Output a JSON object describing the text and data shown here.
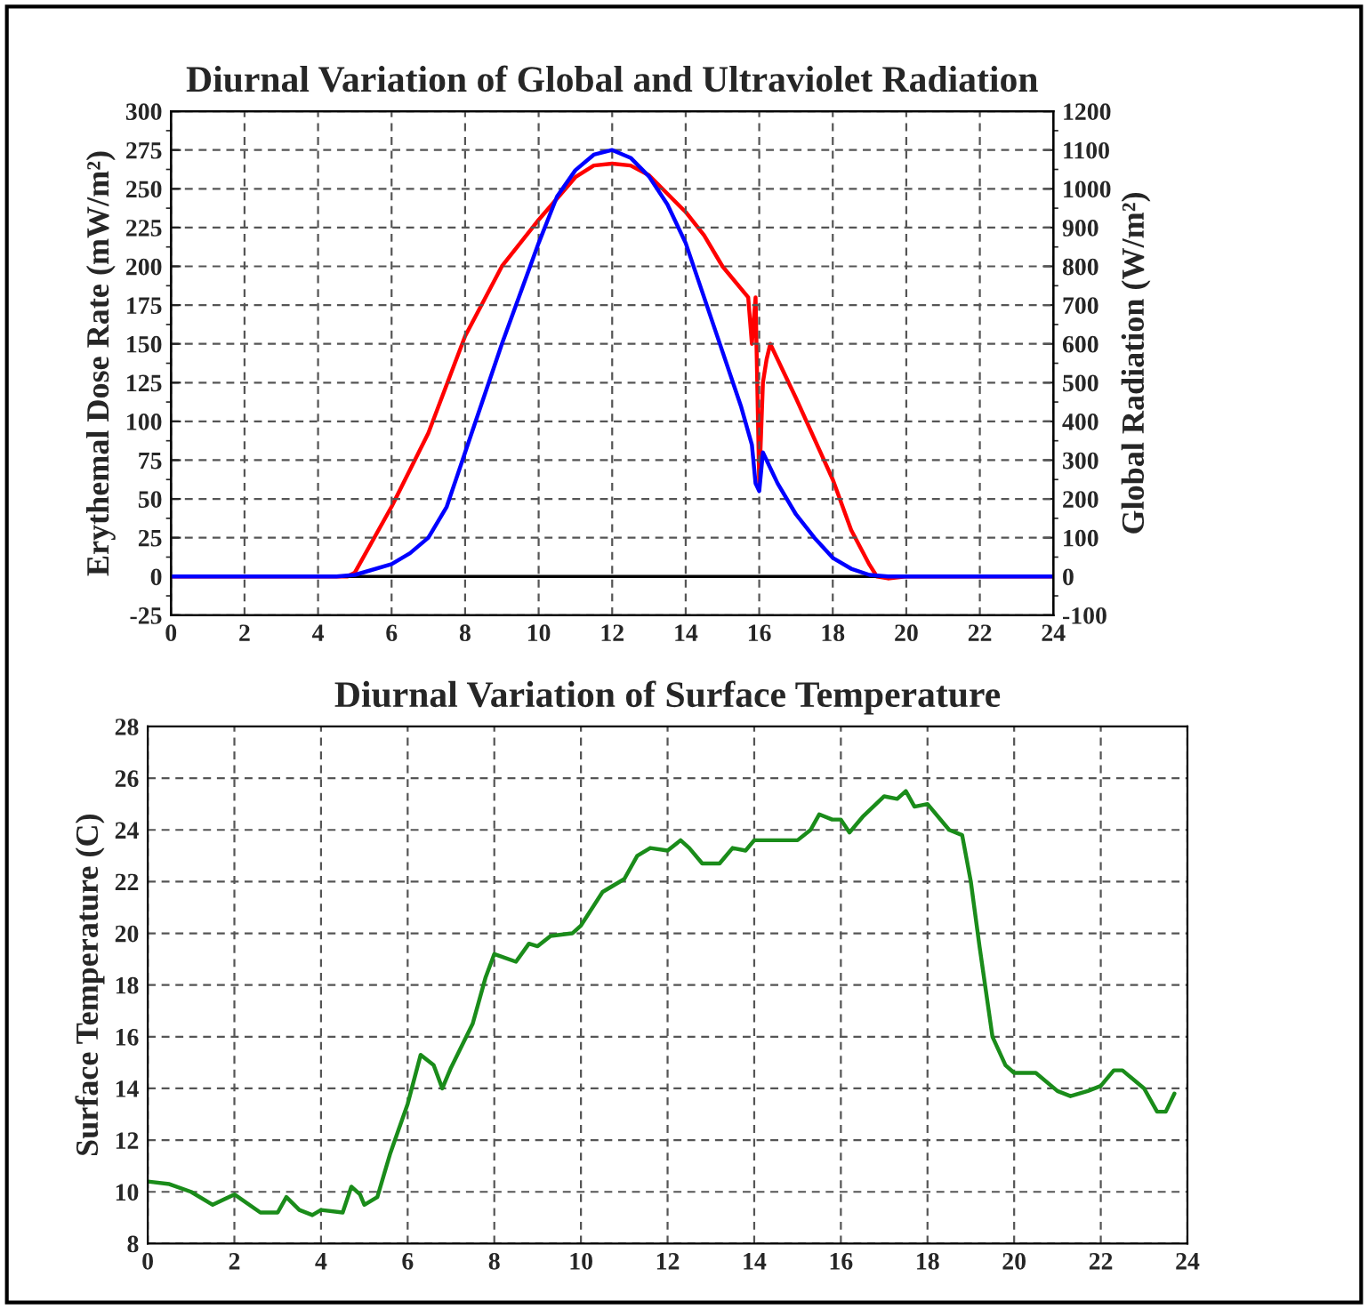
{
  "chart_data": [
    {
      "type": "line",
      "title": "Diurnal Variation of Global and Ultraviolet Radiation",
      "ylabel": "Erythemal Dose Rate (mW/m²)",
      "y2label": "Global Radiation (W/m²)",
      "xlim": [
        0,
        24
      ],
      "xticks": [
        0,
        2,
        4,
        6,
        8,
        10,
        12,
        14,
        16,
        18,
        20,
        22,
        24
      ],
      "ylim": [
        -25,
        300
      ],
      "yticks": [
        -25,
        0,
        25,
        50,
        75,
        100,
        125,
        150,
        175,
        200,
        225,
        250,
        275,
        300
      ],
      "y2lim": [
        -100,
        1200
      ],
      "y2ticks": [
        -100,
        0,
        100,
        200,
        300,
        400,
        500,
        600,
        700,
        800,
        900,
        1000,
        1100,
        1200
      ],
      "grid": true,
      "legend": false,
      "ref_lines": [
        {
          "axis": "y",
          "value": 0,
          "color": "#000000"
        }
      ],
      "series": [
        {
          "color": "#ff0000",
          "axis": "y2",
          "x": [
            0,
            4.8,
            5,
            6,
            7,
            8,
            9,
            10,
            11,
            11.5,
            12,
            12.5,
            13,
            14,
            14.5,
            15,
            15.7,
            15.8,
            15.9,
            16,
            16.1,
            16.2,
            16.3,
            17,
            18,
            18.5,
            19,
            19.2,
            19.5,
            20,
            24
          ],
          "values": [
            0,
            0,
            10,
            180,
            370,
            620,
            800,
            920,
            1030,
            1060,
            1065,
            1060,
            1035,
            940,
            880,
            800,
            720,
            600,
            720,
            240,
            500,
            560,
            600,
            460,
            250,
            120,
            30,
            0,
            -5,
            0,
            0
          ]
        },
        {
          "color": "#0000ff",
          "x": [
            0,
            4.5,
            5,
            6,
            6.5,
            7,
            7.5,
            8,
            9,
            10,
            10.5,
            11,
            11.5,
            12,
            12.5,
            13,
            13.5,
            14,
            14.5,
            15,
            15.5,
            15.8,
            15.9,
            16,
            16.1,
            16.3,
            16.5,
            17,
            17.5,
            18,
            18.5,
            19,
            19.5,
            24
          ],
          "values": [
            0,
            0,
            1,
            8,
            15,
            25,
            45,
            80,
            150,
            215,
            245,
            262,
            272,
            275,
            270,
            258,
            240,
            215,
            180,
            145,
            110,
            85,
            60,
            55,
            80,
            70,
            60,
            40,
            25,
            12,
            5,
            1,
            0,
            0
          ]
        }
      ]
    },
    {
      "type": "line",
      "title": "Diurnal Variation of Surface Temperature",
      "ylabel": "Surface Temperature (C)",
      "xlim": [
        0,
        24
      ],
      "xticks": [
        0,
        2,
        4,
        6,
        8,
        10,
        12,
        14,
        16,
        18,
        20,
        22,
        24
      ],
      "ylim": [
        8,
        28
      ],
      "yticks": [
        8,
        10,
        12,
        14,
        16,
        18,
        20,
        22,
        24,
        26,
        28
      ],
      "grid": true,
      "legend": false,
      "series": [
        {
          "color": "#1a8c1a",
          "x": [
            0,
            0.5,
            1,
            1.5,
            2,
            2.6,
            3,
            3.2,
            3.5,
            3.8,
            4,
            4.5,
            4.7,
            4.9,
            5,
            5.3,
            5.6,
            6,
            6.3,
            6.6,
            6.8,
            7,
            7.5,
            7.8,
            8,
            8.5,
            8.8,
            9,
            9.3,
            9.8,
            10,
            10.5,
            11,
            11.3,
            11.6,
            12,
            12.3,
            12.5,
            12.8,
            13.2,
            13.5,
            13.8,
            14,
            15,
            15.3,
            15.5,
            15.8,
            16,
            16.2,
            16.5,
            17,
            17.3,
            17.5,
            17.7,
            18,
            18.5,
            18.8,
            19,
            19.2,
            19.5,
            19.8,
            20,
            20.5,
            21,
            21.3,
            21.7,
            22,
            22.3,
            22.5,
            23,
            23.3,
            23.5,
            23.7
          ],
          "values": [
            10.4,
            10.3,
            10,
            9.5,
            9.9,
            9.2,
            9.2,
            9.8,
            9.3,
            9.1,
            9.3,
            9.2,
            10.2,
            9.9,
            9.5,
            9.8,
            11.5,
            13.4,
            15.3,
            14.9,
            14,
            14.8,
            16.5,
            18.3,
            19.2,
            18.9,
            19.6,
            19.5,
            19.9,
            20,
            20.3,
            21.6,
            22.1,
            23,
            23.3,
            23.2,
            23.6,
            23.3,
            22.7,
            22.7,
            23.3,
            23.2,
            23.6,
            23.6,
            24,
            24.6,
            24.4,
            24.4,
            23.9,
            24.5,
            25.3,
            25.2,
            25.5,
            24.9,
            25,
            24,
            23.8,
            22,
            19.5,
            16,
            14.9,
            14.6,
            14.6,
            13.9,
            13.7,
            13.9,
            14.1,
            14.7,
            14.7,
            14,
            13.1,
            13.1,
            13.8
          ]
        }
      ]
    }
  ]
}
